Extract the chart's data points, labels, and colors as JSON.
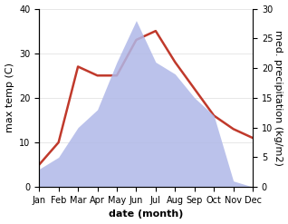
{
  "months": [
    "Jan",
    "Feb",
    "Mar",
    "Apr",
    "May",
    "Jun",
    "Jul",
    "Aug",
    "Sep",
    "Oct",
    "Nov",
    "Dec"
  ],
  "max_temp": [
    5,
    10,
    27,
    25,
    25,
    33,
    35,
    28,
    22,
    16,
    13,
    11
  ],
  "precipitation": [
    3,
    5,
    10,
    13,
    21,
    28,
    21,
    19,
    15,
    12,
    1,
    0
  ],
  "temp_color": "#c0392b",
  "precip_color_fill": "#b0b8e8",
  "temp_ylim": [
    0,
    40
  ],
  "precip_ylim": [
    0,
    30
  ],
  "xlabel": "date (month)",
  "ylabel_left": "max temp (C)",
  "ylabel_right": "med. precipitation (kg/m2)",
  "bg_color": "#ffffff",
  "temp_linewidth": 1.8,
  "tick_fontsize": 7,
  "label_fontsize": 8
}
